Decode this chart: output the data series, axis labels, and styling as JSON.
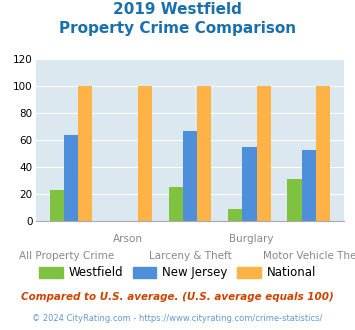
{
  "title_line1": "2019 Westfield",
  "title_line2": "Property Crime Comparison",
  "categories": [
    "All Property Crime",
    "Arson",
    "Larceny & Theft",
    "Burglary",
    "Motor Vehicle Theft"
  ],
  "top_labels": [
    "",
    "Arson",
    "",
    "Burglary",
    ""
  ],
  "bottom_labels": [
    "All Property Crime",
    "",
    "Larceny & Theft",
    "",
    "Motor Vehicle Theft"
  ],
  "westfield": [
    23,
    0,
    25,
    9,
    31
  ],
  "new_jersey": [
    64,
    0,
    67,
    55,
    53
  ],
  "national": [
    100,
    100,
    100,
    100,
    100
  ],
  "bar_color_westfield": "#7fc241",
  "bar_color_nj": "#4d8fdb",
  "bar_color_national": "#ffb347",
  "plot_bg_color": "#dce8f0",
  "ylim": [
    0,
    120
  ],
  "yticks": [
    0,
    20,
    40,
    60,
    80,
    100,
    120
  ],
  "legend_labels": [
    "Westfield",
    "New Jersey",
    "National"
  ],
  "footnote1": "Compared to U.S. average. (U.S. average equals 100)",
  "footnote2": "© 2024 CityRating.com - https://www.cityrating.com/crime-statistics/",
  "title_color": "#1a6fad",
  "footnote1_color": "#cc4400",
  "footnote2_color": "#6699cc"
}
